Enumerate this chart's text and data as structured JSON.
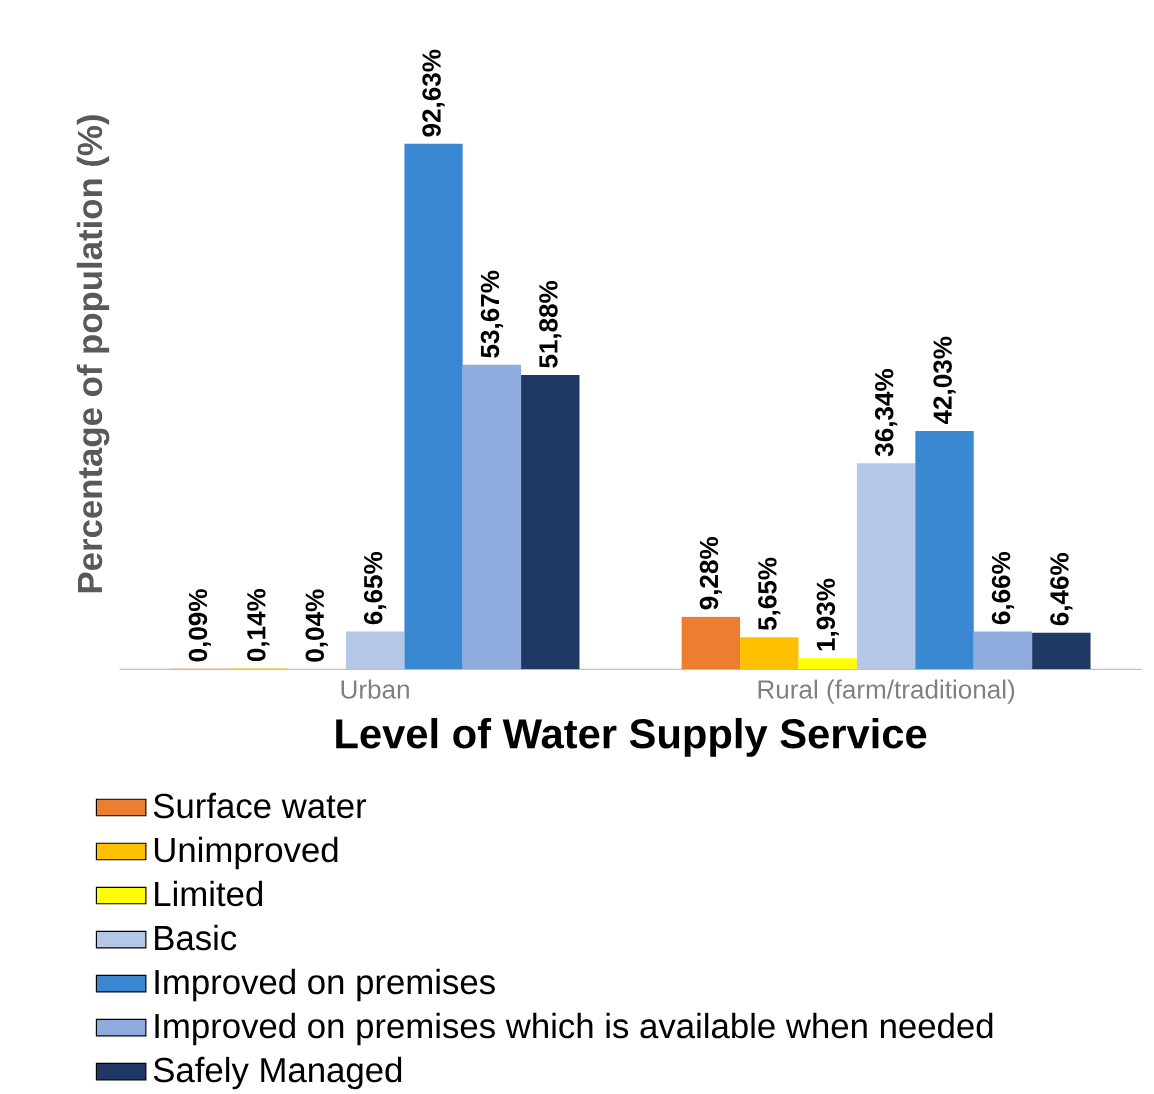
{
  "chart_data": {
    "type": "bar",
    "xlabel": "Level of Water Supply Service",
    "ylabel": "Percentage of population (%)",
    "categories": [
      "Urban",
      "Rural (farm/traditional)"
    ],
    "series": [
      {
        "name": "Surface water",
        "color": "#ed7d31",
        "values": [
          0.09,
          9.28
        ],
        "value_labels": [
          "0,09%",
          "9,28%"
        ]
      },
      {
        "name": "Unimproved",
        "color": "#ffc000",
        "values": [
          0.14,
          5.65
        ],
        "value_labels": [
          "0,14%",
          "5,65%"
        ]
      },
      {
        "name": "Limited",
        "color": "#ffff00",
        "values": [
          0.04,
          1.93
        ],
        "value_labels": [
          "0,04%",
          "1,93%"
        ]
      },
      {
        "name": "Basic",
        "color": "#b4c7e7",
        "values": [
          6.65,
          36.34
        ],
        "value_labels": [
          "6,65%",
          "36,34%"
        ]
      },
      {
        "name": "Improved on premises",
        "color": "#3a88d2",
        "values": [
          92.63,
          42.03
        ],
        "value_labels": [
          "92,63%",
          "42,03%"
        ]
      },
      {
        "name": "Improved  on premises which is available when needed",
        "color": "#8faadc",
        "values": [
          53.67,
          6.66
        ],
        "value_labels": [
          "53,67%",
          "6,66%"
        ]
      },
      {
        "name": "Safely Managed",
        "color": "#203864",
        "values": [
          51.88,
          6.46
        ],
        "value_labels": [
          "51,88%",
          "6,46%"
        ]
      }
    ],
    "legend": "bottom"
  }
}
